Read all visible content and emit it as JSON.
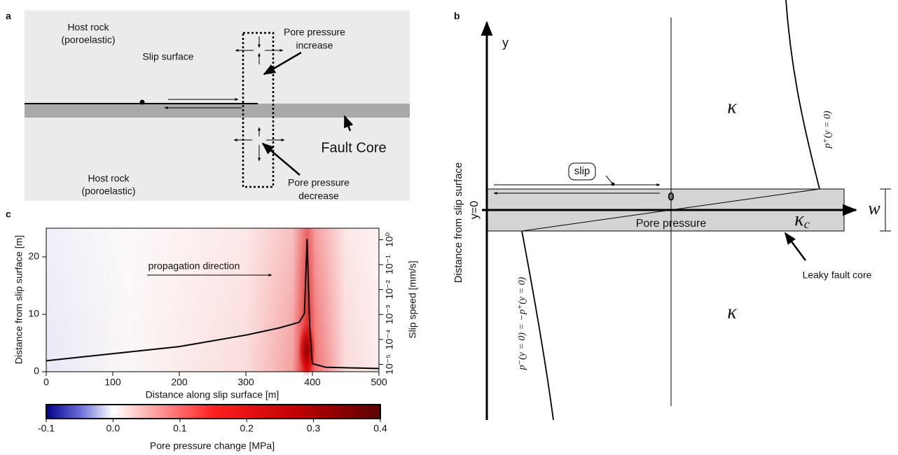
{
  "panel_a": {
    "label": "a",
    "host_rock_top": [
      "Host rock",
      "(poroelastic)"
    ],
    "slip_surface": "Slip surface",
    "pore_increase": [
      "Pore pressure",
      "increase"
    ],
    "fault_core": "Fault Core",
    "host_rock_bottom": [
      "Host rock",
      "(poroelastic)"
    ],
    "pore_decrease": [
      "Pore pressure",
      "decrease"
    ]
  },
  "panel_b": {
    "label": "b",
    "y_axis": "y",
    "y_zero": "y=0",
    "zero": "0",
    "w_axis": "w",
    "kappa_top": "κ",
    "kappa_bottom": "κ",
    "kappa_c": {
      "base": "κ",
      "sub": "c"
    },
    "pore_pressure": "Pore pressure",
    "slip": "slip",
    "leaky": "Leaky fault core",
    "ylabel": "Distance from slip surface",
    "p_plus": "p⁺(y = 0)",
    "p_minus": "p⁻(y = 0) = −p⁺(y = 0)"
  },
  "chart_data": {
    "type": "heatmap-line",
    "panel_label": "c",
    "annotation": "propagation direction",
    "xlabel": "Distance along slip surface [m]",
    "ylabel": "Distance from slip surface [m]",
    "y2label": "Slip speed [mm/s]",
    "xlim": [
      0,
      500
    ],
    "xticks": [
      0,
      100,
      200,
      300,
      400,
      500
    ],
    "ylim": [
      0,
      25
    ],
    "yticks": [
      0,
      10,
      20
    ],
    "y2lim": [
      5.1e-06,
      2.9
    ],
    "y2log": true,
    "y2ticks": [
      {
        "value": 1e-05,
        "label": "10⁻⁵"
      },
      {
        "value": 0.0001,
        "label": "10⁻⁴"
      },
      {
        "value": 0.001,
        "label": "10⁻³"
      },
      {
        "value": 0.01,
        "label": "10⁻²"
      },
      {
        "value": 0.1,
        "label": "10⁻¹"
      },
      {
        "value": 1,
        "label": "10⁰"
      }
    ],
    "series": [
      {
        "axis": "y2",
        "color": "#000000",
        "x": [
          0,
          100,
          200,
          300,
          350,
          380,
          388,
          392,
          396,
          400,
          420,
          500
        ],
        "values": [
          1.4e-05,
          2.7e-05,
          5.2e-05,
          0.00015,
          0.00029,
          0.00049,
          0.0011,
          1.07,
          0.00029,
          1.07e-05,
          7.7e-06,
          6.8e-06
        ]
      }
    ],
    "colorbar": {
      "label": "Pore pressure change [MPa]",
      "lim": [
        -0.1,
        0.4
      ],
      "ticks": [
        -0.1,
        {
          "value": 0,
          "label": "0.0"
        },
        0.1,
        0.2,
        0.3,
        0.4
      ]
    }
  }
}
